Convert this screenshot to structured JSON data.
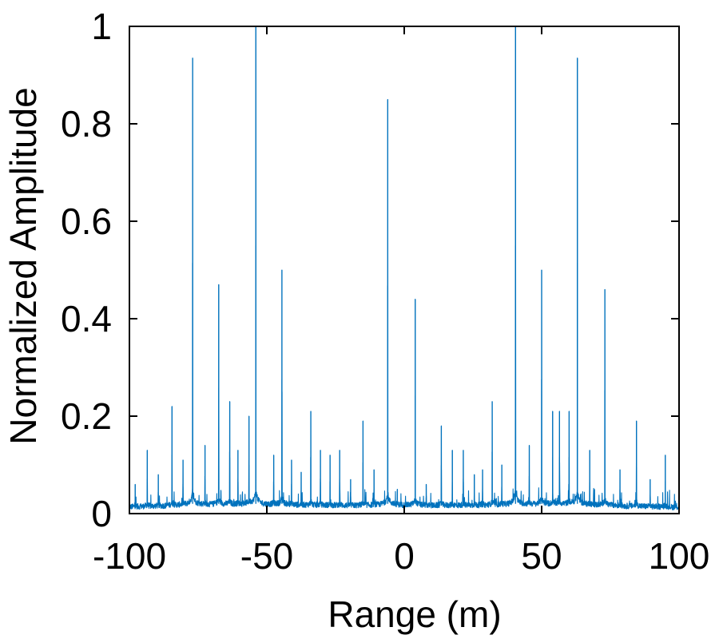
{
  "chart_data": {
    "type": "line",
    "title": "",
    "xlabel": "Range (m)",
    "ylabel": "Normalized Amplitude",
    "xlim": [
      -100,
      100
    ],
    "ylim": [
      0,
      1
    ],
    "xticks": [
      -100,
      -50,
      0,
      50,
      100
    ],
    "xtick_labels": [
      "-100",
      "-50",
      "0",
      "50",
      "100"
    ],
    "yticks": [
      0,
      0.2,
      0.4,
      0.6,
      0.8,
      1
    ],
    "ytick_labels": [
      "0",
      "0.2",
      "0.4",
      "0.6",
      "0.8",
      "1"
    ],
    "grid": false,
    "legend": "none",
    "line_color": "#0072BD",
    "peaks": [
      {
        "x": -97.9,
        "y": 0.06
      },
      {
        "x": -93.5,
        "y": 0.13
      },
      {
        "x": -89.5,
        "y": 0.08
      },
      {
        "x": -84.5,
        "y": 0.22
      },
      {
        "x": -80.5,
        "y": 0.11
      },
      {
        "x": -77.0,
        "y": 0.935
      },
      {
        "x": -72.5,
        "y": 0.14
      },
      {
        "x": -67.5,
        "y": 0.47
      },
      {
        "x": -63.5,
        "y": 0.23
      },
      {
        "x": -60.5,
        "y": 0.13
      },
      {
        "x": -56.5,
        "y": 0.2
      },
      {
        "x": -54.0,
        "y": 1.0
      },
      {
        "x": -47.5,
        "y": 0.12
      },
      {
        "x": -44.5,
        "y": 0.5
      },
      {
        "x": -41.0,
        "y": 0.11
      },
      {
        "x": -37.5,
        "y": 0.085
      },
      {
        "x": -34.0,
        "y": 0.21
      },
      {
        "x": -30.5,
        "y": 0.13
      },
      {
        "x": -27.0,
        "y": 0.12
      },
      {
        "x": -23.5,
        "y": 0.13
      },
      {
        "x": -19.5,
        "y": 0.07
      },
      {
        "x": -15.0,
        "y": 0.19
      },
      {
        "x": -11.0,
        "y": 0.09
      },
      {
        "x": -6.0,
        "y": 0.85
      },
      {
        "x": -2.5,
        "y": 0.05
      },
      {
        "x": 4.0,
        "y": 0.44
      },
      {
        "x": 8.0,
        "y": 0.06
      },
      {
        "x": 13.5,
        "y": 0.18
      },
      {
        "x": 17.5,
        "y": 0.13
      },
      {
        "x": 21.5,
        "y": 0.13
      },
      {
        "x": 25.5,
        "y": 0.08
      },
      {
        "x": 28.5,
        "y": 0.09
      },
      {
        "x": 32.0,
        "y": 0.23
      },
      {
        "x": 35.5,
        "y": 0.1
      },
      {
        "x": 40.5,
        "y": 1.0
      },
      {
        "x": 45.5,
        "y": 0.14
      },
      {
        "x": 50.0,
        "y": 0.5
      },
      {
        "x": 54.0,
        "y": 0.21
      },
      {
        "x": 56.5,
        "y": 0.21
      },
      {
        "x": 60.0,
        "y": 0.21
      },
      {
        "x": 63.0,
        "y": 0.935
      },
      {
        "x": 67.5,
        "y": 0.13
      },
      {
        "x": 73.0,
        "y": 0.46
      },
      {
        "x": 78.5,
        "y": 0.09
      },
      {
        "x": 84.5,
        "y": 0.19
      },
      {
        "x": 89.5,
        "y": 0.07
      },
      {
        "x": 95.0,
        "y": 0.12
      }
    ]
  }
}
